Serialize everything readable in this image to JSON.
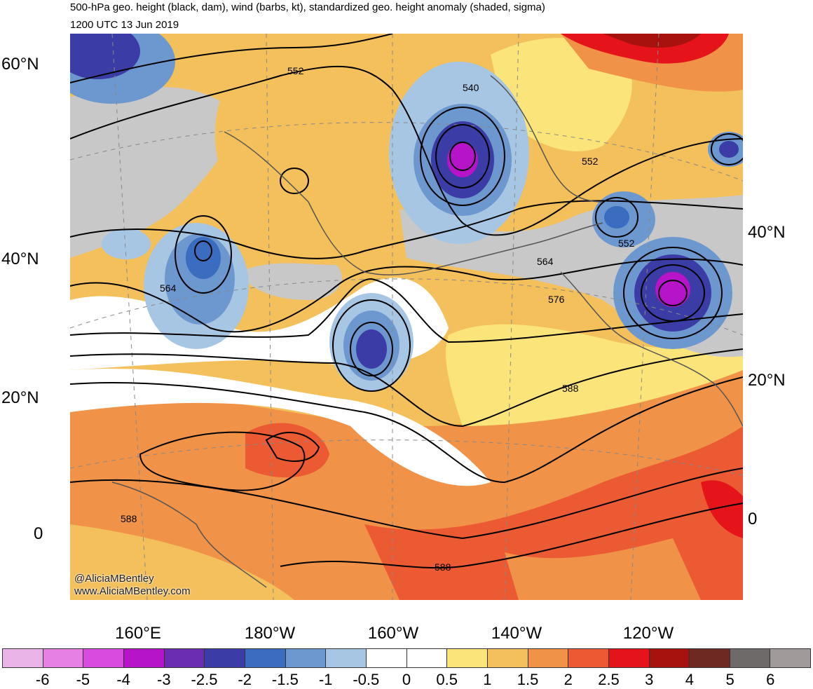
{
  "title": {
    "line1": "500-hPa geo. height (black, dam), wind (barbs, kt), standardized geo. height anomaly (shaded, sigma)",
    "line2": "1200 UTC 13 Jun 2019"
  },
  "credit": {
    "twitter": "@AliciaMBentley",
    "website": "www.AliciaMBentley.com"
  },
  "lat_labels_left": [
    "60°N",
    "40°N",
    "20°N",
    "0"
  ],
  "lat_labels_right": [
    "40°N",
    "20°N",
    "0"
  ],
  "lon_labels": [
    "160°E",
    "180°W",
    "160°W",
    "140°W",
    "120°W"
  ],
  "contour_labels": [
    "552",
    "540",
    "552",
    "552",
    "564",
    "564",
    "576",
    "588",
    "588",
    "588"
  ],
  "colorbar": {
    "labels": [
      "-6",
      "-5",
      "-4",
      "-3",
      "-2.5",
      "-2",
      "-1.5",
      "-1",
      "-0.5",
      "0",
      "0.5",
      "1",
      "1.5",
      "2",
      "2.5",
      "3",
      "4",
      "5",
      "6"
    ],
    "colors": [
      "#ebb4e8",
      "#e680e4",
      "#d84bdc",
      "#b514c8",
      "#6a2cb0",
      "#3c3ca6",
      "#3a6cc0",
      "#6d98cf",
      "#a7c6e4",
      "#ffffff",
      "#ffffff",
      "#fbe57a",
      "#f3c05c",
      "#f09248",
      "#ec5a34",
      "#e4141a",
      "#a8120e",
      "#6e2a22",
      "#6e6a6a",
      "#a09a9a"
    ]
  },
  "colors": {
    "land_gray": "#c8c8c8",
    "contour": "#000000",
    "coast": "#555555"
  }
}
